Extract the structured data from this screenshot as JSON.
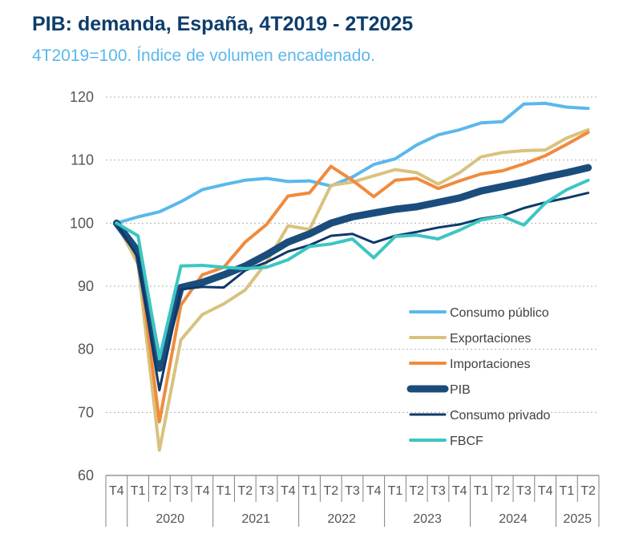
{
  "title": "PIB: demanda, España, 4T2019 - 2T2025",
  "subtitle": "4T2019=100. Índice de volumen encadenado.",
  "chart_data": {
    "type": "line",
    "ylim": [
      60,
      120
    ],
    "yticks": [
      "60",
      "70",
      "80",
      "90",
      "100",
      "110",
      "120"
    ],
    "grid": "horizontal dotted",
    "legend_position": "bottom-right",
    "quarters": [
      "T4",
      "T1",
      "T2",
      "T3",
      "T4",
      "T1",
      "T2",
      "T3",
      "T4",
      "T1",
      "T2",
      "T3",
      "T4",
      "T1",
      "T2",
      "T3",
      "T4",
      "T1",
      "T2",
      "T3",
      "T4",
      "T1",
      "T2"
    ],
    "years": [
      {
        "label": "",
        "start": 0,
        "end": 0
      },
      {
        "label": "2020",
        "start": 1,
        "end": 4
      },
      {
        "label": "2021",
        "start": 5,
        "end": 8
      },
      {
        "label": "2022",
        "start": 9,
        "end": 12
      },
      {
        "label": "2023",
        "start": 13,
        "end": 16
      },
      {
        "label": "2024",
        "start": 17,
        "end": 20
      },
      {
        "label": "2025",
        "start": 21,
        "end": 22
      }
    ],
    "series": [
      {
        "name": "Consumo público",
        "color": "#5bb8ec",
        "width": 4,
        "values": [
          100,
          101,
          101.8,
          103.4,
          105.3,
          106.1,
          106.8,
          107.1,
          106.6,
          106.7,
          105.9,
          107.3,
          109.3,
          110.2,
          112.4,
          114.0,
          114.8,
          115.9,
          116.1,
          118.9,
          119.0,
          118.4,
          118.2
        ]
      },
      {
        "name": "Exportaciones",
        "color": "#d9c27e",
        "width": 4,
        "values": [
          100,
          93.5,
          64.0,
          81.5,
          85.5,
          87.2,
          89.4,
          93.8,
          99.6,
          99.0,
          106.0,
          106.5,
          107.5,
          108.5,
          108.0,
          106.2,
          108.0,
          110.5,
          111.2,
          111.5,
          111.6,
          113.5,
          114.8
        ]
      },
      {
        "name": "Importaciones",
        "color": "#f08b3c",
        "width": 4,
        "values": [
          100,
          95.5,
          68.5,
          87.0,
          91.8,
          93.0,
          97.0,
          99.8,
          104.3,
          104.8,
          109.0,
          106.8,
          104.2,
          106.8,
          107.1,
          105.5,
          106.7,
          107.8,
          108.3,
          109.4,
          110.7,
          112.5,
          114.4
        ]
      },
      {
        "name": "PIB",
        "color": "#1b4d7c",
        "width": 9,
        "values": [
          100,
          95.5,
          77.0,
          89.8,
          90.6,
          91.8,
          93.2,
          95.0,
          97.0,
          98.3,
          100.0,
          101.0,
          101.6,
          102.2,
          102.6,
          103.3,
          104.0,
          105.1,
          105.8,
          106.5,
          107.3,
          108.0,
          108.8
        ]
      },
      {
        "name": "Consumo privado",
        "color": "#0d3a6b",
        "width": 3,
        "values": [
          100,
          94.5,
          73.5,
          89.5,
          89.9,
          89.8,
          92.5,
          93.8,
          95.5,
          96.5,
          98.0,
          98.3,
          96.9,
          98.0,
          98.6,
          99.3,
          99.8,
          100.7,
          101.2,
          102.4,
          103.3,
          104.0,
          104.8
        ]
      },
      {
        "name": "FBCF",
        "color": "#3cc6c3",
        "width": 4,
        "values": [
          100,
          98.0,
          78.5,
          93.2,
          93.3,
          93.0,
          92.8,
          93.0,
          94.2,
          96.3,
          96.7,
          97.5,
          94.5,
          97.9,
          98.1,
          97.5,
          98.9,
          100.5,
          101.1,
          99.7,
          103.2,
          105.3,
          106.8
        ]
      }
    ]
  }
}
